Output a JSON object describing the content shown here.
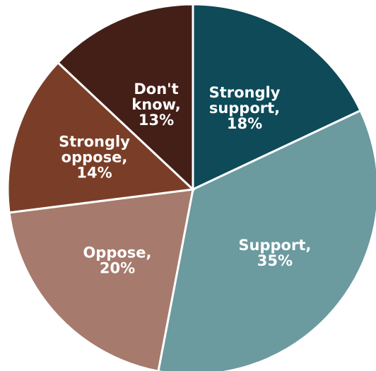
{
  "chart_data": {
    "type": "pie",
    "title": "",
    "start": "12 o'clock",
    "direction": "clockwise",
    "legend": "none",
    "slices": [
      {
        "label": "Strongly support",
        "value": 18,
        "display": [
          "Strongly",
          "support,",
          "18%"
        ],
        "color": "#0e4a58"
      },
      {
        "label": "Support",
        "value": 35,
        "display": [
          "Support,",
          "35%"
        ],
        "color": "#6b9a9f"
      },
      {
        "label": "Oppose",
        "value": 20,
        "display": [
          "Oppose,",
          "20%"
        ],
        "color": "#a67a6c"
      },
      {
        "label": "Strongly oppose",
        "value": 14,
        "display": [
          "Strongly",
          "oppose,",
          "14%"
        ],
        "color": "#7a3e28"
      },
      {
        "label": "Don't know",
        "value": 13,
        "display": [
          "Don't",
          "know,",
          "13%"
        ],
        "color": "#441f18"
      }
    ]
  }
}
